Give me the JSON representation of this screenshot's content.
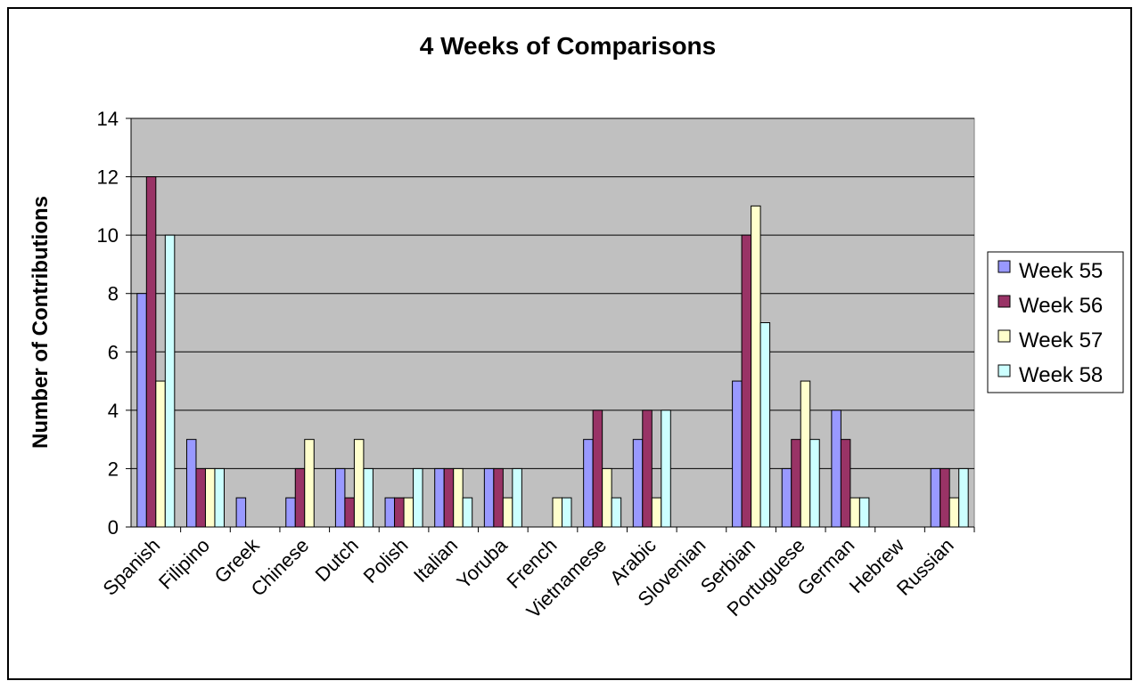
{
  "chart_data": {
    "type": "bar",
    "title": "4 Weeks of Comparisons",
    "xlabel": "",
    "ylabel": "Number of Contributions",
    "ylim": [
      0,
      14
    ],
    "yticks": [
      0,
      2,
      4,
      6,
      8,
      10,
      12,
      14
    ],
    "grid": true,
    "legend_position": "right",
    "categories": [
      "Spanish",
      "Filipino",
      "Greek",
      "Chinese",
      "Dutch",
      "Polish",
      "Italian",
      "Yoruba",
      "French",
      "Vietnamese",
      "Arabic",
      "Slovenian",
      "Serbian",
      "Portuguese",
      "German",
      "Hebrew",
      "Russian"
    ],
    "series": [
      {
        "name": "Week 55",
        "color": "#9999ff",
        "values": [
          8,
          3,
          1,
          1,
          2,
          1,
          2,
          2,
          0,
          3,
          3,
          0,
          5,
          2,
          4,
          0,
          2
        ]
      },
      {
        "name": "Week 56",
        "color": "#993366",
        "values": [
          12,
          2,
          0,
          2,
          1,
          1,
          2,
          2,
          0,
          4,
          4,
          0,
          10,
          3,
          3,
          0,
          2
        ]
      },
      {
        "name": "Week 57",
        "color": "#ffffcc",
        "values": [
          5,
          2,
          0,
          3,
          3,
          1,
          2,
          1,
          1,
          2,
          1,
          0,
          11,
          5,
          1,
          0,
          1
        ]
      },
      {
        "name": "Week 58",
        "color": "#ccffff",
        "values": [
          10,
          2,
          0,
          0,
          2,
          2,
          1,
          2,
          1,
          1,
          4,
          0,
          7,
          3,
          1,
          0,
          2
        ]
      }
    ],
    "plot_background": "#c0c0c0"
  }
}
